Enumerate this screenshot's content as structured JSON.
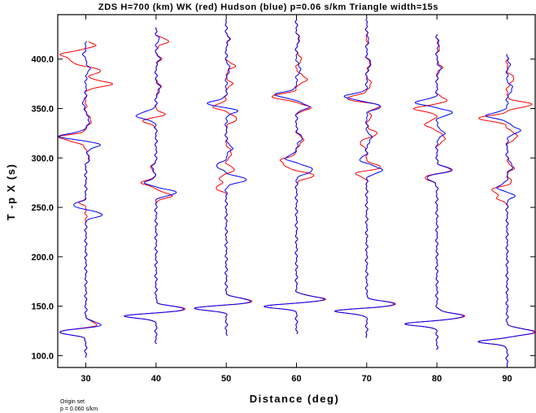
{
  "chart_data": {
    "type": "line",
    "title": "ZDS H=700 (km) WK (red) Hudson (blue) p=0.06 s/km Triangle width=15s",
    "xlabel": "Distance (deg)",
    "ylabel": "T -p X (s)",
    "xlim": [
      26,
      94
    ],
    "ylim": [
      88,
      445
    ],
    "xticks": [
      30,
      40,
      50,
      60,
      70,
      80,
      90
    ],
    "xtick_labels": [
      "30",
      "40",
      "50",
      "60",
      "70",
      "80",
      "90"
    ],
    "yticks": [
      100,
      150,
      200,
      250,
      300,
      350,
      400
    ],
    "ytick_labels": [
      "100.0",
      "150.0",
      "200.0",
      "250.0",
      "300.0",
      "350.0",
      "400.0"
    ],
    "grid": false,
    "legend": "none",
    "colors": {
      "WK": "#ff0000",
      "Hudson": "#0000ff",
      "axes": "#000000"
    },
    "series": [
      {
        "name": "WK",
        "traces": [
          {
            "distance": 30,
            "t_start": 98,
            "t_end": 418,
            "pulses": [
              [
                124,
                -3.8,
                4
              ],
              [
                131,
                1.8,
                4
              ],
              [
                255,
                -0.8,
                3
              ],
              [
                300,
                0.6,
                4
              ],
              [
                318,
                -2.2,
                4
              ],
              [
                322,
                -2.8,
                3
              ],
              [
                338,
                0.8,
                5
              ],
              [
                375,
                3.8,
                4
              ],
              [
                388,
                2.2,
                4
              ],
              [
                398,
                -2.0,
                5
              ],
              [
                405,
                -3.2,
                4
              ],
              [
                414,
                1.5,
                3
              ]
            ]
          },
          {
            "distance": 40,
            "t_start": 112,
            "t_end": 432,
            "pulses": [
              [
                140,
                -4.8,
                3
              ],
              [
                147,
                4.2,
                4
              ],
              [
                262,
                2.2,
                4
              ],
              [
                275,
                -2.0,
                4
              ],
              [
                290,
                -0.8,
                4
              ],
              [
                338,
                -2.2,
                4
              ],
              [
                343,
                1.5,
                4
              ],
              [
                372,
                0.6,
                5
              ],
              [
                400,
                0.7,
                4
              ],
              [
                418,
                1.8,
                4
              ]
            ]
          },
          {
            "distance": 50,
            "t_start": 120,
            "t_end": 440,
            "pulses": [
              [
                148,
                -4.8,
                3
              ],
              [
                155,
                3.8,
                4
              ],
              [
                270,
                -1.5,
                4
              ],
              [
                280,
                -1.0,
                4
              ],
              [
                288,
                1.2,
                4
              ],
              [
                305,
                0.8,
                5
              ],
              [
                340,
                1.5,
                5
              ],
              [
                352,
                -1.8,
                4
              ],
              [
                375,
                0.8,
                4
              ],
              [
                393,
                1.2,
                4
              ],
              [
                420,
                0.5,
                4
              ]
            ]
          },
          {
            "distance": 60,
            "t_start": 122,
            "t_end": 440,
            "pulses": [
              [
                150,
                -4.8,
                3
              ],
              [
                157,
                4.2,
                4
              ],
              [
                282,
                2.5,
                4
              ],
              [
                292,
                -1.5,
                4
              ],
              [
                298,
                -2.0,
                4
              ],
              [
                318,
                1.0,
                5
              ],
              [
                351,
                2.0,
                4
              ],
              [
                362,
                -3.5,
                4
              ],
              [
                380,
                1.5,
                5
              ],
              [
                400,
                0.8,
                4
              ],
              [
                420,
                0.5,
                4
              ]
            ]
          },
          {
            "distance": 70,
            "t_start": 118,
            "t_end": 440,
            "pulses": [
              [
                145,
                -4.8,
                3
              ],
              [
                152,
                4.2,
                4
              ],
              [
                285,
                -2.0,
                4
              ],
              [
                290,
                2.5,
                4
              ],
              [
                315,
                -1.0,
                4
              ],
              [
                325,
                1.5,
                4
              ],
              [
                342,
                0.6,
                5
              ],
              [
                353,
                2.0,
                4
              ],
              [
                360,
                -3.0,
                4
              ],
              [
                375,
                0.7,
                4
              ],
              [
                395,
                0.5,
                4
              ]
            ]
          },
          {
            "distance": 80,
            "t_start": 106,
            "t_end": 425,
            "pulses": [
              [
                132,
                -4.5,
                3
              ],
              [
                140,
                4.0,
                4
              ],
              [
                280,
                -1.8,
                4
              ],
              [
                288,
                2.0,
                4
              ],
              [
                320,
                1.2,
                5
              ],
              [
                334,
                -1.8,
                4
              ],
              [
                350,
                -3.2,
                4
              ],
              [
                358,
                1.5,
                4
              ],
              [
                392,
                0.7,
                4
              ],
              [
                412,
                0.4,
                4
              ]
            ]
          },
          {
            "distance": 90,
            "t_start": 90,
            "t_end": 405,
            "pulses": [
              [
                114,
                -4.0,
                3
              ],
              [
                124,
                4.2,
                4
              ],
              [
                260,
                -1.5,
                4
              ],
              [
                268,
                -2.2,
                4
              ],
              [
                275,
                0.8,
                4
              ],
              [
                290,
                0.9,
                4
              ],
              [
                322,
                1.5,
                5
              ],
              [
                340,
                -4.0,
                4
              ],
              [
                354,
                3.5,
                4
              ],
              [
                380,
                1.0,
                5
              ]
            ]
          }
        ]
      },
      {
        "name": "Hudson",
        "traces": [
          {
            "distance": 30,
            "t_start": 98,
            "t_end": 418,
            "pulses": [
              [
                124,
                -3.8,
                4
              ],
              [
                131,
                2.4,
                4
              ],
              [
                243,
                2.4,
                4
              ],
              [
                252,
                -1.8,
                4
              ],
              [
                300,
                0.5,
                4
              ],
              [
                313,
                2.0,
                4
              ],
              [
                322,
                -3.8,
                4
              ],
              [
                338,
                0.5,
                5
              ],
              [
                355,
                -0.4,
                5
              ],
              [
                390,
                0.5,
                5
              ],
              [
                405,
                -0.3,
                4
              ]
            ]
          },
          {
            "distance": 40,
            "t_start": 112,
            "t_end": 432,
            "pulses": [
              [
                140,
                -4.8,
                3
              ],
              [
                147,
                4.0,
                4
              ],
              [
                265,
                3.0,
                4
              ],
              [
                275,
                -1.5,
                4
              ],
              [
                290,
                -0.6,
                4
              ],
              [
                343,
                -2.8,
                5
              ],
              [
                370,
                0.6,
                5
              ],
              [
                400,
                0.5,
                4
              ],
              [
                420,
                0.4,
                4
              ]
            ]
          },
          {
            "distance": 50,
            "t_start": 120,
            "t_end": 440,
            "pulses": [
              [
                148,
                -4.8,
                3
              ],
              [
                155,
                3.6,
                4
              ],
              [
                278,
                3.0,
                4
              ],
              [
                292,
                -1.5,
                4
              ],
              [
                310,
                0.8,
                5
              ],
              [
                348,
                1.6,
                4
              ],
              [
                355,
                -2.8,
                4
              ],
              [
                390,
                0.5,
                5
              ],
              [
                420,
                0.4,
                4
              ]
            ]
          },
          {
            "distance": 60,
            "t_start": 122,
            "t_end": 440,
            "pulses": [
              [
                150,
                -4.8,
                3
              ],
              [
                157,
                4.0,
                4
              ],
              [
                288,
                2.4,
                5
              ],
              [
                300,
                -1.6,
                4
              ],
              [
                320,
                0.8,
                5
              ],
              [
                352,
                1.8,
                4
              ],
              [
                364,
                -3.0,
                4
              ],
              [
                390,
                0.6,
                5
              ],
              [
                420,
                0.4,
                4
              ]
            ]
          },
          {
            "distance": 70,
            "t_start": 118,
            "t_end": 440,
            "pulses": [
              [
                145,
                -4.8,
                3
              ],
              [
                152,
                4.0,
                4
              ],
              [
                288,
                2.2,
                5
              ],
              [
                298,
                -1.0,
                4
              ],
              [
                320,
                0.7,
                5
              ],
              [
                352,
                2.0,
                4
              ],
              [
                362,
                -3.2,
                4
              ],
              [
                395,
                0.6,
                5
              ],
              [
                420,
                0.3,
                4
              ]
            ]
          },
          {
            "distance": 80,
            "t_start": 106,
            "t_end": 425,
            "pulses": [
              [
                132,
                -4.5,
                3
              ],
              [
                140,
                3.8,
                4
              ],
              [
                280,
                -1.5,
                4
              ],
              [
                288,
                2.2,
                4
              ],
              [
                325,
                1.0,
                5
              ],
              [
                346,
                2.2,
                4
              ],
              [
                356,
                -3.0,
                4
              ],
              [
                390,
                0.5,
                5
              ],
              [
                415,
                0.3,
                4
              ]
            ]
          },
          {
            "distance": 90,
            "t_start": 90,
            "t_end": 405,
            "pulses": [
              [
                114,
                -4.0,
                3
              ],
              [
                124,
                4.0,
                4
              ],
              [
                262,
                1.0,
                4
              ],
              [
                270,
                -1.5,
                4
              ],
              [
                292,
                0.8,
                5
              ],
              [
                328,
                1.8,
                5
              ],
              [
                343,
                -3.0,
                4
              ],
              [
                370,
                0.8,
                5
              ],
              [
                395,
                0.4,
                4
              ]
            ]
          }
        ]
      }
    ]
  },
  "footnote": {
    "line1": "Origin set",
    "line2": "p = 0.060 s/km"
  }
}
